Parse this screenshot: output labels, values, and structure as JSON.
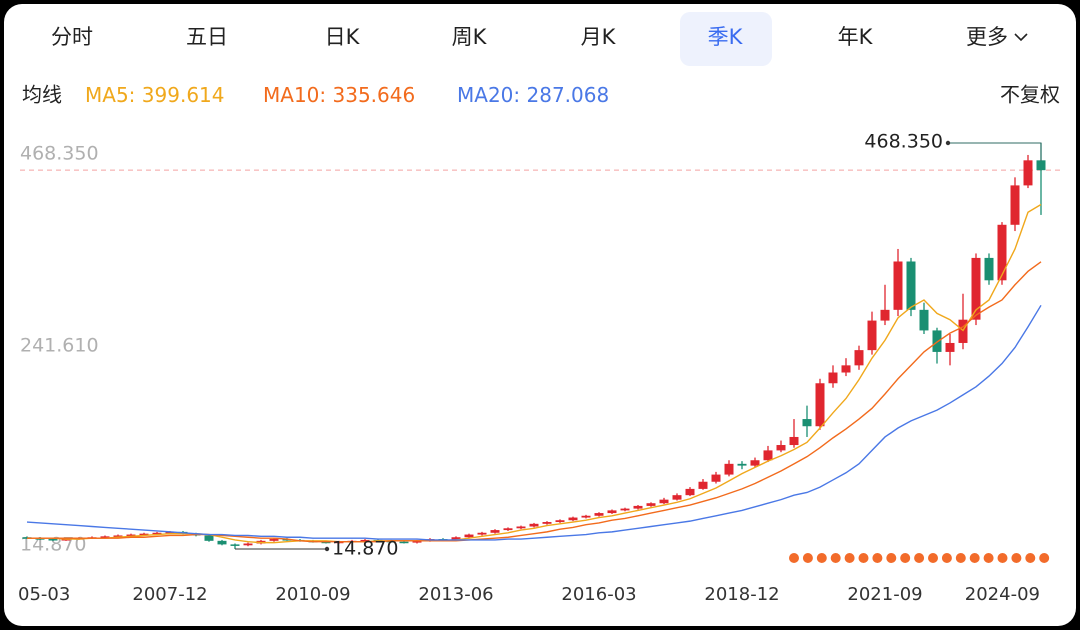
{
  "tabs": [
    "分时",
    "五日",
    "日K",
    "周K",
    "月K",
    "季K",
    "年K",
    "更多"
  ],
  "active_tab": 5,
  "chart_data": {
    "type": "candlestick",
    "ma_label": "均线",
    "adjust_label": "不复权",
    "up_color": "#e0262f",
    "down_color": "#1a8f72",
    "categories": [
      "05-03",
      null,
      null,
      null,
      null,
      null,
      null,
      null,
      null,
      null,
      null,
      "2007-12",
      null,
      null,
      null,
      null,
      null,
      null,
      null,
      null,
      null,
      null,
      "2010-09",
      null,
      null,
      null,
      null,
      null,
      null,
      null,
      null,
      null,
      null,
      "2013-06",
      null,
      null,
      null,
      null,
      null,
      null,
      null,
      null,
      null,
      null,
      "2016-03",
      null,
      null,
      null,
      null,
      null,
      null,
      null,
      null,
      null,
      null,
      "2018-12",
      null,
      null,
      null,
      null,
      null,
      null,
      null,
      null,
      null,
      null,
      "2021-09",
      null,
      null,
      null,
      null,
      null,
      null,
      null,
      null,
      null,
      null,
      null,
      "2024-09"
    ],
    "open": [
      28,
      27,
      26,
      25,
      26,
      27,
      28,
      29,
      30,
      31,
      32,
      33,
      34,
      32,
      30,
      24,
      20,
      19,
      21,
      24,
      26,
      25,
      24,
      23,
      22,
      23,
      24,
      25,
      24,
      23,
      22,
      24,
      26,
      25,
      28,
      31,
      33,
      36,
      38,
      40,
      43,
      45,
      47,
      50,
      52,
      55,
      58,
      60,
      63,
      66,
      70,
      75,
      82,
      90,
      98,
      110,
      108,
      114,
      125,
      131,
      160,
      152,
      200,
      212,
      220,
      237,
      270,
      282,
      336,
      282,
      259,
      235,
      245,
      271,
      340,
      315,
      377,
      421,
      449
    ],
    "high": [
      29,
      28,
      27,
      27,
      28,
      29,
      30,
      31,
      32,
      33,
      34,
      35,
      35,
      33,
      31,
      25,
      21,
      22,
      25,
      27,
      27,
      26,
      25,
      24,
      24,
      25,
      26,
      26,
      25,
      24,
      25,
      27,
      27,
      29,
      32,
      34,
      37,
      39,
      41,
      44,
      46,
      48,
      51,
      53,
      56,
      59,
      61,
      64,
      67,
      72,
      77,
      84,
      93,
      101,
      114,
      113,
      117,
      130,
      136,
      160,
      175,
      205,
      220,
      228,
      242,
      280,
      310,
      350,
      340,
      290,
      262,
      255,
      300,
      345,
      345,
      380,
      430,
      455,
      468.35
    ],
    "low": [
      26,
      25,
      24,
      24,
      25,
      26,
      27,
      28,
      29,
      30,
      31,
      32,
      31,
      29,
      23,
      19,
      14.87,
      18,
      20,
      23,
      24,
      23,
      22,
      21,
      21,
      22,
      23,
      23,
      22,
      21,
      21,
      23,
      24,
      24,
      27,
      30,
      32,
      35,
      37,
      39,
      42,
      44,
      46,
      49,
      51,
      54,
      57,
      59,
      62,
      65,
      69,
      74,
      81,
      88,
      96,
      104,
      106,
      112,
      123,
      128,
      140,
      148,
      195,
      208,
      215,
      232,
      265,
      275,
      275,
      255,
      222,
      220,
      238,
      265,
      310,
      310,
      370,
      418,
      388
    ],
    "close": [
      27,
      26,
      25,
      26,
      27,
      28,
      29,
      30,
      31,
      32,
      33,
      34,
      32,
      30,
      24,
      20,
      19,
      21,
      24,
      26,
      25,
      24,
      23,
      22,
      23,
      24,
      25,
      24,
      23,
      22,
      24,
      26,
      25,
      28,
      31,
      33,
      36,
      38,
      40,
      43,
      45,
      47,
      50,
      52,
      55,
      58,
      60,
      63,
      66,
      70,
      75,
      82,
      90,
      98,
      110,
      108,
      114,
      125,
      131,
      140,
      152,
      200,
      212,
      220,
      237,
      270,
      282,
      336,
      282,
      259,
      235,
      245,
      271,
      340,
      315,
      377,
      421,
      449,
      438
    ],
    "series": [
      {
        "name": "MA5",
        "color": "#f0a81c",
        "values": [
          27,
          27,
          27,
          26,
          26,
          27,
          27,
          28,
          29,
          30,
          31,
          32,
          32,
          32,
          31,
          28,
          25,
          23,
          22,
          22,
          23,
          24,
          24,
          24,
          23,
          23,
          23,
          24,
          24,
          24,
          24,
          24,
          24,
          25,
          27,
          29,
          31,
          33,
          36,
          38,
          41,
          43,
          45,
          47,
          50,
          52,
          55,
          58,
          61,
          64,
          67,
          71,
          77,
          83,
          91,
          99,
          106,
          113,
          119,
          126,
          134,
          150,
          167,
          183,
          204,
          228,
          248,
          273,
          285,
          293,
          278,
          271,
          259,
          282,
          293,
          321,
          350,
          391,
          399.614
        ]
      },
      {
        "name": "MA10",
        "color": "#f26b1d",
        "values": [
          27,
          27,
          27,
          27,
          27,
          27,
          27,
          27,
          28,
          28,
          29,
          30,
          30,
          31,
          31,
          30,
          29,
          28,
          27,
          27,
          26,
          24,
          23,
          23,
          23,
          23,
          23,
          23,
          24,
          24,
          24,
          24,
          24,
          24,
          25,
          26,
          27,
          28,
          30,
          32,
          34,
          37,
          39,
          42,
          44,
          47,
          49,
          52,
          55,
          58,
          61,
          64,
          68,
          72,
          77,
          82,
          88,
          95,
          102,
          110,
          118,
          128,
          139,
          149,
          160,
          172,
          188,
          205,
          220,
          235,
          246,
          256,
          263,
          276,
          285,
          293,
          310,
          325,
          335.646
        ]
      },
      {
        "name": "MA20",
        "color": "#4a78e6",
        "values": [
          45,
          44,
          43,
          42,
          41,
          40,
          39,
          38,
          37,
          36,
          35,
          34,
          33,
          32,
          31,
          31,
          30,
          30,
          29,
          29,
          28,
          28,
          27,
          27,
          27,
          27,
          27,
          26,
          26,
          26,
          26,
          25,
          25,
          25,
          25,
          25,
          25,
          26,
          26,
          27,
          28,
          29,
          30,
          31,
          33,
          34,
          36,
          38,
          40,
          42,
          44,
          46,
          49,
          52,
          55,
          58,
          62,
          66,
          70,
          75,
          78,
          84,
          92,
          100,
          110,
          125,
          140,
          150,
          158,
          164,
          170,
          178,
          187,
          196,
          208,
          222,
          240,
          263,
          287.068
        ]
      }
    ],
    "ylim": [
      14.87,
      468.35
    ],
    "yticks": [
      {
        "value": 468.35,
        "label": "468.350"
      },
      {
        "value": 241.61,
        "label": "241.610"
      },
      {
        "value": 14.87,
        "label": "14.870"
      }
    ],
    "max_label": "468.350",
    "min_label": "14.870",
    "last_price_line": true
  }
}
